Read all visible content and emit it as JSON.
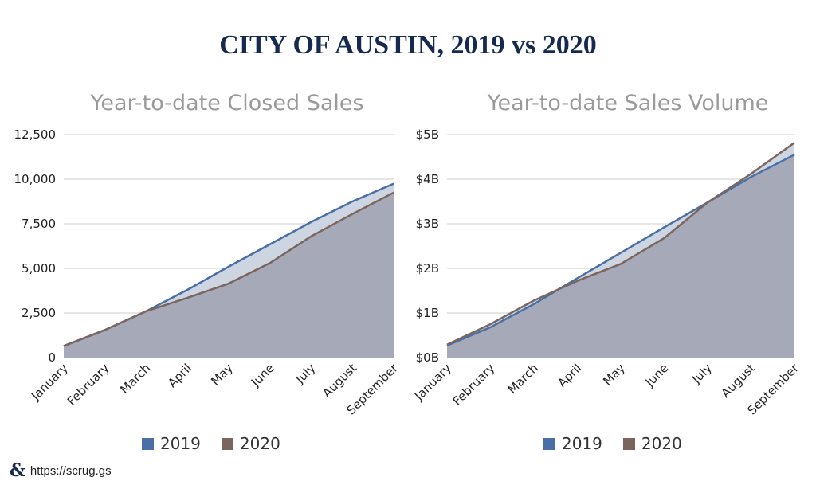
{
  "title": "CITY OF AUSTIN, 2019 vs 2020",
  "footer": {
    "link": "https://scrug.gs",
    "logo": "ampersand-logo"
  },
  "colors": {
    "s2019": "#4a6fa5",
    "s2020": "#7b665f",
    "fillBack": "#cdd5e2",
    "fillFront": "#a6a9b8",
    "grid": "#cccccc"
  },
  "chart_data": [
    {
      "type": "area",
      "title": "Year-to-date Closed Sales",
      "categories": [
        "January",
        "February",
        "March",
        "April",
        "May",
        "June",
        "July",
        "August",
        "September"
      ],
      "ylim": [
        0,
        12500
      ],
      "yticks": [
        "0",
        "2,500",
        "5,000",
        "7,500",
        "10,000",
        "12,500"
      ],
      "series": [
        {
          "name": "2019",
          "values": [
            650,
            1550,
            2600,
            3800,
            5100,
            6350,
            7600,
            8750,
            9750
          ]
        },
        {
          "name": "2020",
          "values": [
            650,
            1550,
            2600,
            3350,
            4150,
            5300,
            6800,
            8050,
            9250
          ]
        }
      ],
      "legend": [
        "2019",
        "2020"
      ]
    },
    {
      "type": "area",
      "title": "Year-to-date Sales Volume",
      "categories": [
        "January",
        "February",
        "March",
        "April",
        "May",
        "June",
        "July",
        "August",
        "September"
      ],
      "ylim": [
        0,
        5
      ],
      "yticks": [
        "$0B",
        "$1B",
        "$2B",
        "$3B",
        "$4B",
        "$5B"
      ],
      "series": [
        {
          "name": "2019",
          "values": [
            0.27,
            0.68,
            1.2,
            1.78,
            2.35,
            2.92,
            3.48,
            4.05,
            4.55
          ]
        },
        {
          "name": "2020",
          "values": [
            0.29,
            0.75,
            1.28,
            1.72,
            2.1,
            2.68,
            3.48,
            4.12,
            4.82
          ]
        }
      ],
      "legend": [
        "2019",
        "2020"
      ]
    }
  ]
}
